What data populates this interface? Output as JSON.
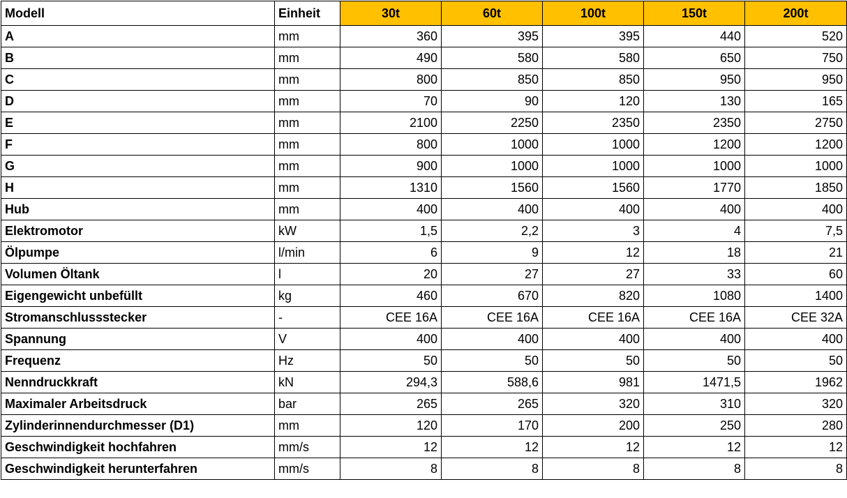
{
  "table": {
    "header": [
      "Modell",
      "Einheit",
      "30t",
      "60t",
      "100t",
      "150t",
      "200t"
    ],
    "rows": [
      [
        "A",
        "mm",
        "360",
        "395",
        "395",
        "440",
        "520"
      ],
      [
        "B",
        "mm",
        "490",
        "580",
        "580",
        "650",
        "750"
      ],
      [
        "C",
        "mm",
        "800",
        "850",
        "850",
        "950",
        "950"
      ],
      [
        "D",
        "mm",
        "70",
        "90",
        "120",
        "130",
        "165"
      ],
      [
        "E",
        "mm",
        "2100",
        "2250",
        "2350",
        "2350",
        "2750"
      ],
      [
        "F",
        "mm",
        "800",
        "1000",
        "1000",
        "1200",
        "1200"
      ],
      [
        "G",
        "mm",
        "900",
        "1000",
        "1000",
        "1000",
        "1000"
      ],
      [
        "H",
        "mm",
        "1310",
        "1560",
        "1560",
        "1770",
        "1850"
      ],
      [
        "Hub",
        "mm",
        "400",
        "400",
        "400",
        "400",
        "400"
      ],
      [
        "Elektromotor",
        "kW",
        "1,5",
        "2,2",
        "3",
        "4",
        "7,5"
      ],
      [
        "Ölpumpe",
        "l/min",
        "6",
        "9",
        "12",
        "18",
        "21"
      ],
      [
        "Volumen Öltank",
        "l",
        "20",
        "27",
        "27",
        "33",
        "60"
      ],
      [
        "Eigengewicht unbefüllt",
        "kg",
        "460",
        "670",
        "820",
        "1080",
        "1400"
      ],
      [
        "Stromanschlussstecker",
        "-",
        "CEE 16A",
        "CEE 16A",
        "CEE 16A",
        "CEE 16A",
        "CEE 32A"
      ],
      [
        "Spannung",
        "V",
        "400",
        "400",
        "400",
        "400",
        "400"
      ],
      [
        "Frequenz",
        "Hz",
        "50",
        "50",
        "50",
        "50",
        "50"
      ],
      [
        "Nenndruckkraft",
        "kN",
        "294,3",
        "588,6",
        "981",
        "1471,5",
        "1962"
      ],
      [
        "Maximaler Arbeitsdruck",
        "bar",
        "265",
        "265",
        "320",
        "310",
        "320"
      ],
      [
        "Zylinderinnendurchmesser (D1)",
        "mm",
        "120",
        "170",
        "200",
        "250",
        "280"
      ],
      [
        "Geschwindigkeit hochfahren",
        "mm/s",
        "12",
        "12",
        "12",
        "12",
        "12"
      ],
      [
        "Geschwindigkeit herunterfahren",
        "mm/s",
        "8",
        "8",
        "8",
        "8",
        "8"
      ]
    ]
  }
}
